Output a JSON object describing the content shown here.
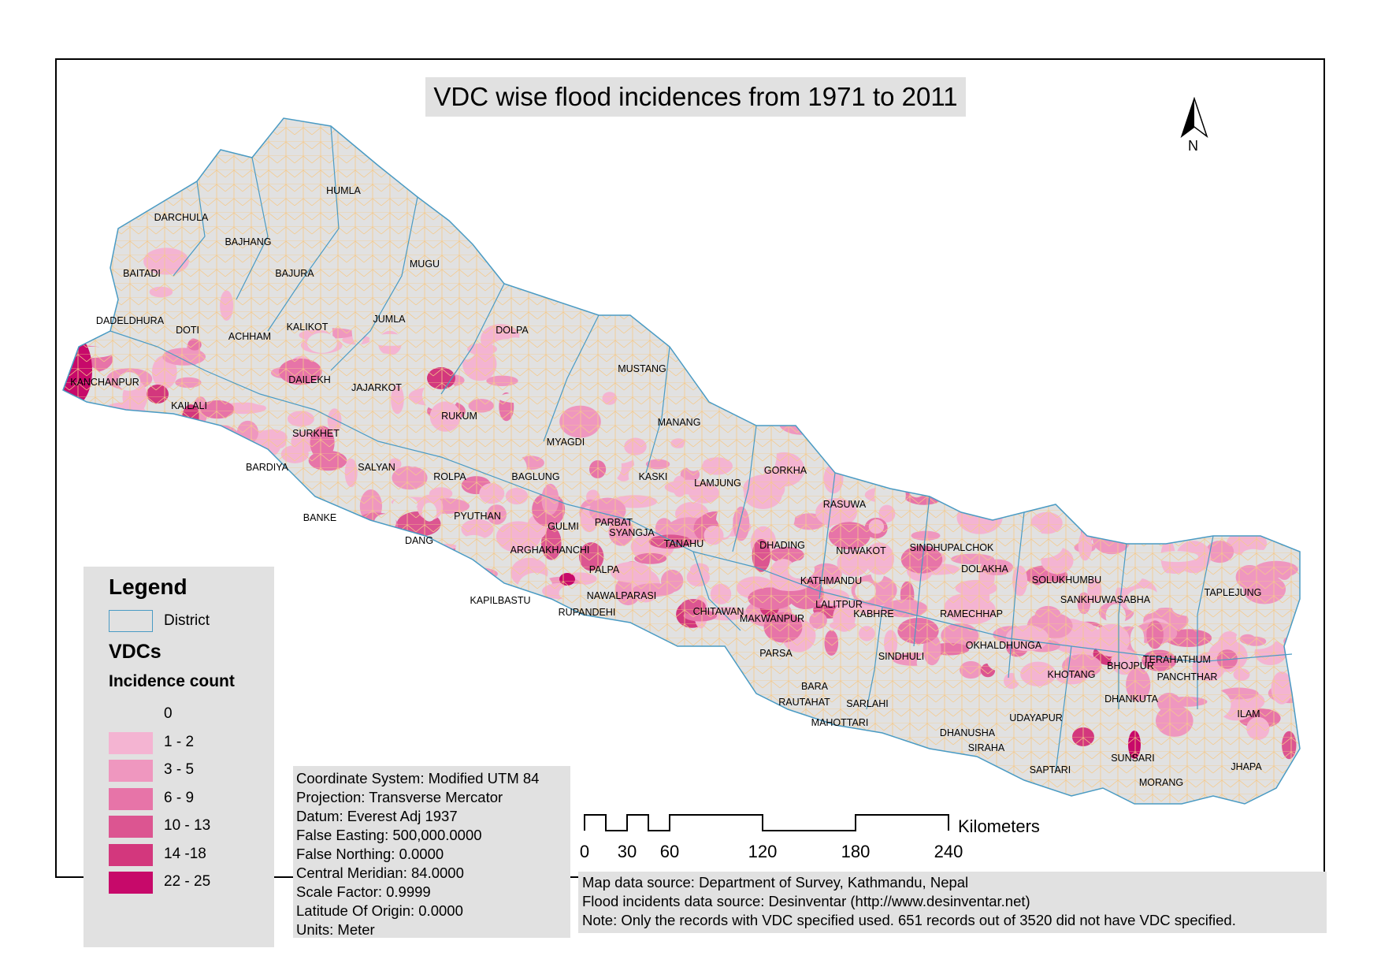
{
  "title": "VDC wise flood incidences from 1971 to 2011",
  "north_label": "N",
  "legend": {
    "title": "Legend",
    "district_label": "District",
    "vdcs_label": "VDCs",
    "incidence_label": "Incidence count",
    "classes": [
      {
        "label": "0",
        "color": "#e1e1e1"
      },
      {
        "label": "1 - 2",
        "color": "#f4b4d2"
      },
      {
        "label": "3 - 5",
        "color": "#ef97bf"
      },
      {
        "label": "6 - 9",
        "color": "#e774a8"
      },
      {
        "label": "10 - 13",
        "color": "#dc5591"
      },
      {
        "label": "14 -18",
        "color": "#d3377d"
      },
      {
        "label": "22 - 25",
        "color": "#c7096a"
      }
    ]
  },
  "coordinate_info": [
    "Coordinate System: Modified UTM 84",
    "Projection: Transverse Mercator",
    "Datum: Everest Adj 1937",
    "False Easting: 500,000.0000",
    "False Northing: 0.0000",
    "Central Meridian: 84.0000",
    "Scale Factor: 0.9999",
    "Latitude Of Origin: 0.0000",
    "Units: Meter"
  ],
  "sources": [
    "Map data source: Department of Survey, Kathmandu, Nepal",
    "Flood incidents data source: Desinventar (http://www.desinventar.net)",
    "Note: Only the records with VDC specified used. 651 records out of 3520 did not have VDC specified."
  ],
  "scale_bar": {
    "unit": "Kilometers",
    "ticks": [
      "0",
      "30",
      "60",
      "120",
      "180",
      "240"
    ]
  },
  "colors": {
    "district_border": "#4a9bc4",
    "vdc_border": "#f5c98a",
    "no_data": "#ffffff"
  },
  "districts": [
    "HUMLA",
    "DARCHULA",
    "BAJHANG",
    "BAITADI",
    "BAJURA",
    "MUGU",
    "DADELDHURA",
    "DOTI",
    "ACHHAM",
    "KALIKOT",
    "JUMLA",
    "DOLPA",
    "KANCHANPUR",
    "DAILEKH",
    "JAJARKOT",
    "KAILALI",
    "RUKUM",
    "MUSTANG",
    "SURKHET",
    "MANANG",
    "MYAGDI",
    "BARDIYA",
    "SALYAN",
    "ROLPA",
    "BAGLUNG",
    "KASKI",
    "LAMJUNG",
    "GORKHA",
    "RASUWA",
    "PARBAT",
    "BANKE",
    "PYUTHAN",
    "GULMI",
    "SYANGJA",
    "TANAHU",
    "DANG",
    "DHADING",
    "NUWAKOT",
    "SINDHUPALCHOK",
    "ARGHAKHANCHI",
    "PALPA",
    "DOLAKHA",
    "SOLUKHUMBU",
    "KATHMANDU",
    "TAPLEJUNG",
    "SANKHUWASABHA",
    "KAPILBASTU",
    "NAWALPARASI",
    "LALITPUR",
    "CHITAWAN",
    "RUPANDEHI",
    "KABHRE",
    "RAMECHHAP",
    "MAKWANPUR",
    "OKHALDHUNGA",
    "PARSA",
    "SINDHULI",
    "BHOJPUR",
    "TERAHATHUM",
    "KHOTANG",
    "PANCHTHAR",
    "BARA",
    "RAUTAHAT",
    "SARLAHI",
    "DHANKUTA",
    "ILAM",
    "MAHOTTARI",
    "UDAYAPUR",
    "DHANUSHA",
    "SIRAHA",
    "SAPTARI",
    "SUNSARI",
    "JHAPA",
    "MORANG"
  ]
}
